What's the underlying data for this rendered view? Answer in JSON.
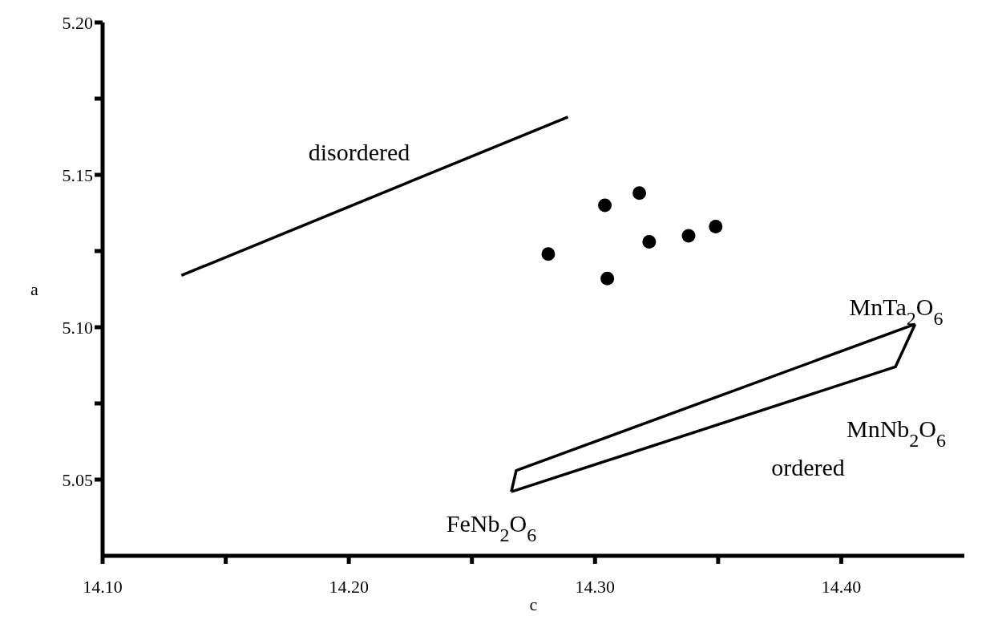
{
  "chart_data": {
    "type": "scatter",
    "xlabel": "c",
    "ylabel": "a",
    "xlim": [
      14.1,
      14.45
    ],
    "ylim": [
      5.025,
      5.2
    ],
    "xticks": [
      {
        "value": 14.1,
        "label": "14.10"
      },
      {
        "value": 14.15,
        "label": null
      },
      {
        "value": 14.2,
        "label": "14.20"
      },
      {
        "value": 14.25,
        "label": null
      },
      {
        "value": 14.3,
        "label": "14.30"
      },
      {
        "value": 14.35,
        "label": null
      },
      {
        "value": 14.4,
        "label": "14.40"
      }
    ],
    "yticks": [
      {
        "value": 5.05,
        "label": "5.05"
      },
      {
        "value": 5.075,
        "label": null
      },
      {
        "value": 5.1,
        "label": "5.10"
      },
      {
        "value": 5.125,
        "label": null
      },
      {
        "value": 5.15,
        "label": "5.15"
      },
      {
        "value": 5.175,
        "label": null
      },
      {
        "value": 5.2,
        "label": "5.20"
      }
    ],
    "grid": false,
    "legend": false,
    "series": [
      {
        "color": "#000000",
        "marker": "circle",
        "x": [
          14.281,
          14.304,
          14.318,
          14.322,
          14.338,
          14.349,
          14.305
        ],
        "values": [
          5.124,
          5.14,
          5.144,
          5.128,
          5.13,
          5.133,
          5.116
        ]
      },
      {
        "type": "line",
        "color": "#000000",
        "marker": "none",
        "line_style": "solid",
        "x": [
          14.132,
          14.289
        ],
        "values": [
          5.117,
          5.169
        ]
      },
      {
        "type": "line",
        "color": "#000000",
        "marker": "none",
        "line_style": "solid",
        "x": [
          14.266,
          14.268,
          14.43
        ],
        "values": [
          5.046,
          5.053,
          5.101
        ]
      },
      {
        "type": "line",
        "color": "#000000",
        "marker": "none",
        "line_style": "solid",
        "x": [
          14.266,
          14.422,
          14.43
        ],
        "values": [
          5.046,
          5.087,
          5.101
        ]
      }
    ],
    "annotations": [
      "disordered",
      "ordered",
      "MnTa$_{2}$O$_{6}$",
      "MnNb$_{2}$O$_{6}$",
      "FeNb$_{2}$O$_{6}$"
    ]
  }
}
